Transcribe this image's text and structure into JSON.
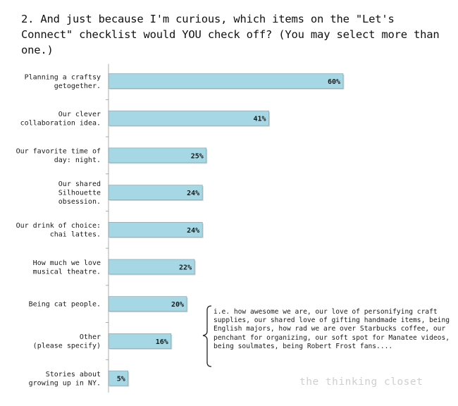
{
  "title": "2. And just because I'm curious, which items on the \"Let's Connect\" checklist would YOU check off? (You may select more than one.)",
  "note": "i.e. how awesome we are, our love of personifying craft supplies, our shared love of gifting handmade items, being English majors,  how rad we are over Starbucks coffee, our penchant for organizing, our soft spot for Manatee videos, being soulmates, being Robert Frost fans....",
  "watermark": "the thinking closet",
  "colors": {
    "bar": "#a5d8e4",
    "bar_edge": "#7a9fa8",
    "axis": "#999999"
  },
  "chart_data": {
    "type": "bar",
    "orientation": "horizontal",
    "categories": [
      [
        "Planning a craftsy",
        "getogether."
      ],
      [
        "Our clever",
        "collaboration idea."
      ],
      [
        "Our favorite time of",
        "day: night."
      ],
      [
        "Our shared",
        "Silhouette",
        "obsession."
      ],
      [
        "Our drink of choice:",
        "chai lattes."
      ],
      [
        "How much we love",
        "musical theatre."
      ],
      [
        "Being cat people."
      ],
      [
        "Other",
        "(please specify)"
      ],
      [
        "Stories about",
        "growing up in NY."
      ]
    ],
    "values": [
      60,
      41,
      25,
      24,
      24,
      22,
      20,
      16,
      5
    ],
    "value_labels": [
      "60%",
      "41%",
      "25%",
      "24%",
      "24%",
      "22%",
      "20%",
      "16%",
      "5%"
    ],
    "xlim": [
      0,
      60
    ]
  }
}
